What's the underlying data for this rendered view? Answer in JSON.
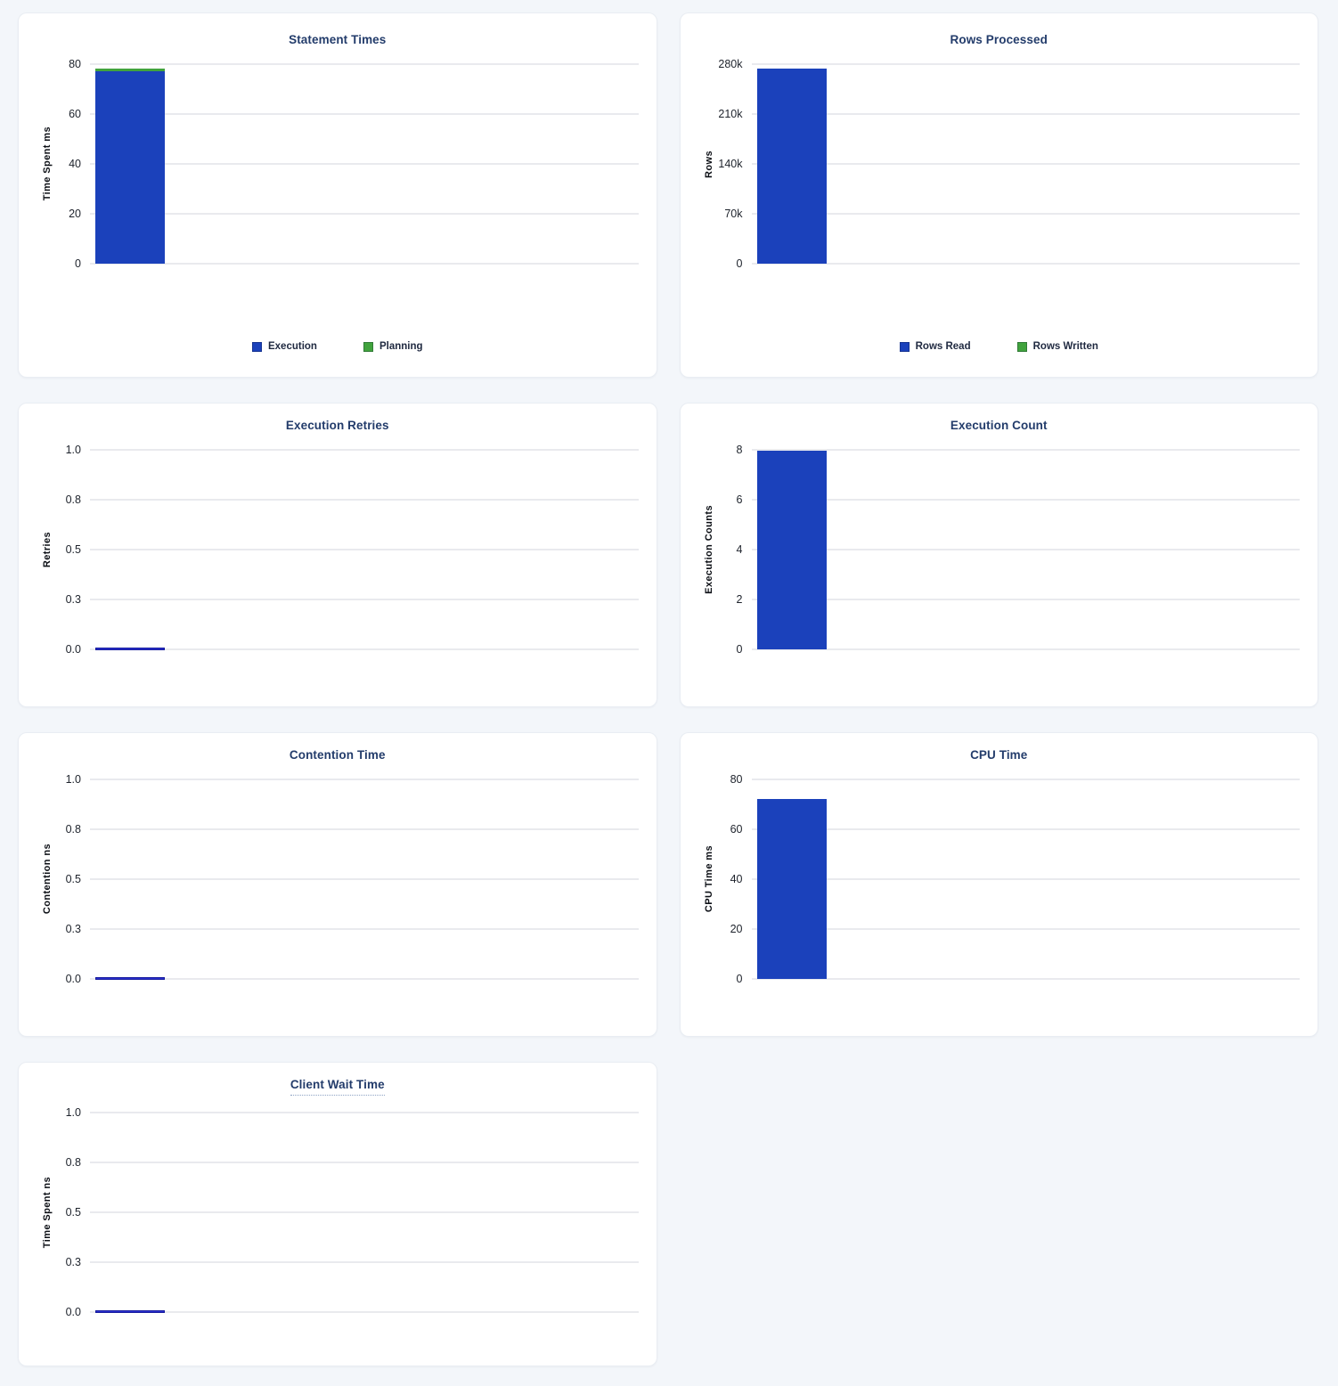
{
  "colors": {
    "bar_blue": "#1B41BB",
    "bar_green": "#41A33D",
    "zero_line_blue": "#2A2FD0",
    "title_navy": "#233C6B",
    "page_background": "#F3F6FA",
    "gridline": "#E9EAEE"
  },
  "chart_data": [
    {
      "type": "bar",
      "title": "Statement Times",
      "ylabel": "Time Spent ms",
      "ylim": [
        0,
        80
      ],
      "grid": true,
      "stacked": true,
      "legend_position": "bottom",
      "show_legend": true,
      "yticks": [
        {
          "label": "80",
          "value": 80
        },
        {
          "label": "60",
          "value": 60
        },
        {
          "label": "40",
          "value": 40
        },
        {
          "label": "20",
          "value": 20
        },
        {
          "label": "0",
          "value": 0
        }
      ],
      "series": [
        {
          "name": "Execution",
          "value": 77,
          "color": "#1B41BB"
        },
        {
          "name": "Planning",
          "value": 1.3,
          "color": "#41A33D"
        }
      ]
    },
    {
      "type": "bar",
      "title": "Rows Processed",
      "ylabel": "Rows",
      "ylim": [
        0,
        280000
      ],
      "grid": true,
      "stacked": true,
      "legend_position": "bottom",
      "show_legend": true,
      "yticks": [
        {
          "label": "280k",
          "value": 280000
        },
        {
          "label": "210k",
          "value": 210000
        },
        {
          "label": "140k",
          "value": 140000
        },
        {
          "label": "70k",
          "value": 70000
        },
        {
          "label": "0",
          "value": 0
        }
      ],
      "series": [
        {
          "name": "Rows Read",
          "value": 274000,
          "color": "#1B41BB"
        },
        {
          "name": "Rows Written",
          "value": 0,
          "color": "#41A33D"
        }
      ]
    },
    {
      "type": "bar",
      "title": "Execution Retries",
      "ylabel": "Retries",
      "ylim": [
        0,
        1
      ],
      "grid": true,
      "stacked": false,
      "show_legend": false,
      "yticks": [
        {
          "label": "1.0",
          "value": 1
        },
        {
          "label": "0.8",
          "value": 0.75
        },
        {
          "label": "0.5",
          "value": 0.5
        },
        {
          "label": "0.3",
          "value": 0.25
        },
        {
          "label": "0.0",
          "value": 0
        }
      ],
      "series": [
        {
          "name": "Retries",
          "value": 0,
          "color": "#1B41BB"
        }
      ]
    },
    {
      "type": "bar",
      "title": "Execution Count",
      "ylabel": "Execution Counts",
      "ylim": [
        0,
        8
      ],
      "grid": true,
      "stacked": false,
      "show_legend": false,
      "yticks": [
        {
          "label": "8",
          "value": 8
        },
        {
          "label": "6",
          "value": 6
        },
        {
          "label": "4",
          "value": 4
        },
        {
          "label": "2",
          "value": 2
        },
        {
          "label": "0",
          "value": 0
        }
      ],
      "series": [
        {
          "name": "Execution Count",
          "value": 7.95,
          "color": "#1B41BB"
        }
      ]
    },
    {
      "type": "bar",
      "title": "Contention Time",
      "ylabel": "Contention ns",
      "ylim": [
        0,
        1
      ],
      "grid": true,
      "stacked": false,
      "show_legend": false,
      "yticks": [
        {
          "label": "1.0",
          "value": 1
        },
        {
          "label": "0.8",
          "value": 0.75
        },
        {
          "label": "0.5",
          "value": 0.5
        },
        {
          "label": "0.3",
          "value": 0.25
        },
        {
          "label": "0.0",
          "value": 0
        }
      ],
      "series": [
        {
          "name": "Contention",
          "value": 0,
          "color": "#1B41BB"
        }
      ]
    },
    {
      "type": "bar",
      "title": "CPU Time",
      "ylabel": "CPU Time ms",
      "ylim": [
        0,
        80
      ],
      "grid": true,
      "stacked": false,
      "show_legend": false,
      "yticks": [
        {
          "label": "80",
          "value": 80
        },
        {
          "label": "60",
          "value": 60
        },
        {
          "label": "40",
          "value": 40
        },
        {
          "label": "20",
          "value": 20
        },
        {
          "label": "0",
          "value": 0
        }
      ],
      "series": [
        {
          "name": "CPU Time",
          "value": 72.3,
          "color": "#1B41BB"
        }
      ]
    },
    {
      "type": "bar",
      "title": "Client Wait Time",
      "title_has_tooltip_underline": true,
      "ylabel": "Time Spent ns",
      "ylim": [
        0,
        1
      ],
      "grid": true,
      "stacked": false,
      "show_legend": false,
      "yticks": [
        {
          "label": "1.0",
          "value": 1
        },
        {
          "label": "0.8",
          "value": 0.75
        },
        {
          "label": "0.5",
          "value": 0.5
        },
        {
          "label": "0.3",
          "value": 0.25
        },
        {
          "label": "0.0",
          "value": 0
        }
      ],
      "series": [
        {
          "name": "Client Wait",
          "value": 0,
          "color": "#1B41BB"
        }
      ]
    }
  ]
}
